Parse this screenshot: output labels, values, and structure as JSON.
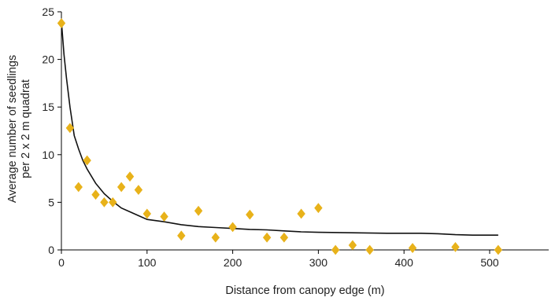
{
  "chart_data": {
    "type": "scatter",
    "title": "",
    "xlabel": "Distance from canopy edge (m)",
    "ylabel_line1": "Average number of seedlings",
    "ylabel_line2": "per 2 x 2 m quadrat",
    "xlim": [
      0,
      575
    ],
    "ylim": [
      0,
      25
    ],
    "x_ticks": [
      0,
      100,
      200,
      300,
      400,
      500
    ],
    "y_ticks": [
      0,
      5,
      10,
      15,
      20,
      25
    ],
    "grid": false,
    "marker_color": "#E8B21A",
    "line_color": "#111111",
    "series": [
      {
        "kind": "points",
        "x": [
          0,
          10,
          20,
          30,
          40,
          50,
          60,
          70,
          80,
          90,
          100,
          120,
          140,
          160,
          180,
          200,
          220,
          240,
          260,
          280,
          300,
          320,
          340,
          360,
          410,
          460,
          510
        ],
        "y": [
          23.8,
          12.8,
          6.6,
          9.4,
          5.8,
          5.0,
          5.0,
          6.6,
          7.7,
          6.3,
          3.8,
          3.5,
          1.5,
          4.1,
          1.3,
          2.4,
          3.7,
          1.3,
          1.3,
          3.8,
          4.4,
          0,
          0.5,
          0,
          0.2,
          0.3,
          0
        ]
      },
      {
        "kind": "fit-line",
        "x": [
          0,
          3,
          6,
          10,
          15,
          20,
          25,
          30,
          40,
          50,
          60,
          70,
          80,
          90,
          100,
          120,
          140,
          160,
          180,
          200,
          220,
          240,
          260,
          280,
          300,
          340,
          380,
          420,
          440,
          460,
          480,
          510
        ],
        "y": [
          24,
          20.5,
          18,
          15,
          12,
          10.6,
          9.4,
          8.5,
          7.0,
          5.9,
          5.1,
          4.4,
          4.0,
          3.6,
          3.2,
          2.95,
          2.65,
          2.45,
          2.35,
          2.25,
          2.15,
          2.1,
          2.0,
          1.9,
          1.85,
          1.8,
          1.75,
          1.75,
          1.7,
          1.6,
          1.55,
          1.55
        ]
      }
    ]
  }
}
